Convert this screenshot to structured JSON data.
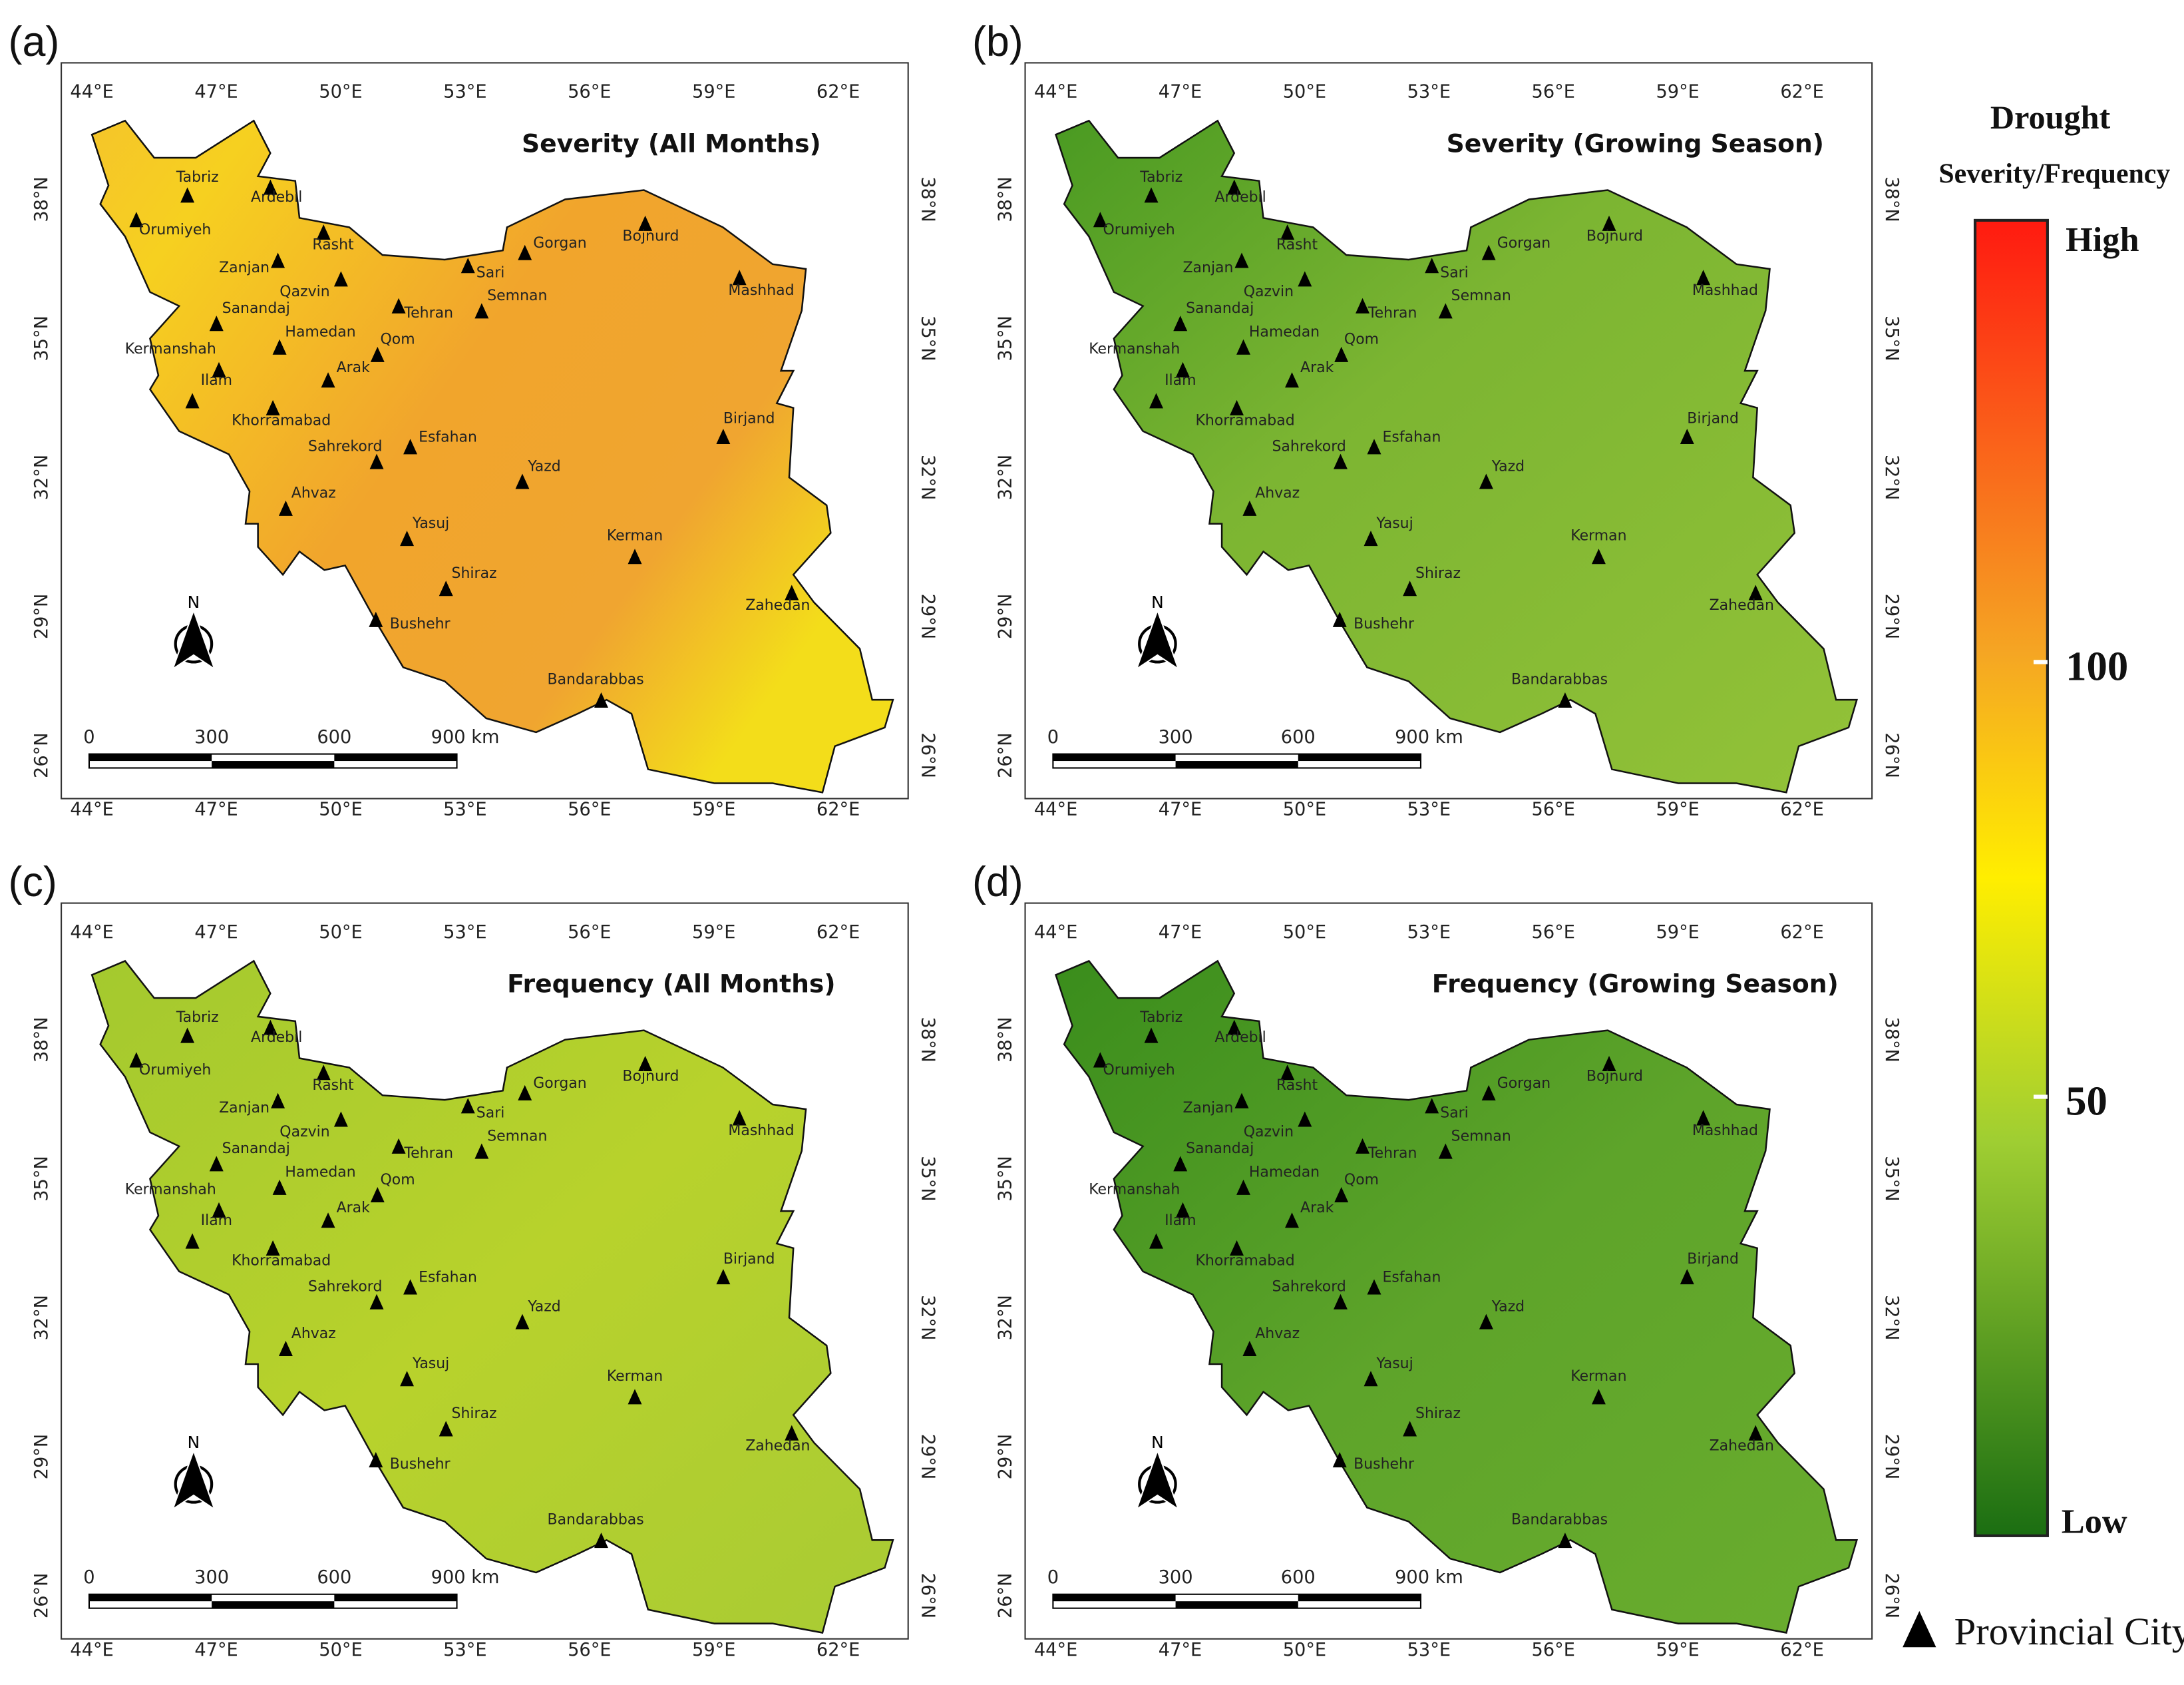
{
  "panels": [
    {
      "label": "(a)",
      "title": "Severity (All Months)"
    },
    {
      "label": "(b)",
      "title": "Severity (Growing Season)"
    },
    {
      "label": "(c)",
      "title": "Frequency (All Months)"
    },
    {
      "label": "(d)",
      "title": "Frequency (Growing Season)"
    }
  ],
  "lon_ticks": [
    "44°E",
    "47°E",
    "50°E",
    "53°E",
    "56°E",
    "59°E",
    "62°E"
  ],
  "lat_ticks": [
    "26°N",
    "29°N",
    "32°N",
    "35°N",
    "38°N"
  ],
  "north": "N",
  "scale_bar": [
    "0",
    "300",
    "600",
    "900 km"
  ],
  "cities": [
    "Tabriz",
    "Ardebil",
    "Orumiyeh",
    "Rasht",
    "Zanjan",
    "Qazvin",
    "Gorgan",
    "Sari",
    "Tehran",
    "Semnan",
    "Bojnurd",
    "Mashhad",
    "Sanandaj",
    "Hamedan",
    "Kermanshah",
    "Qom",
    "Arak",
    "Ilam",
    "Khorramabad",
    "Esfahan",
    "Sahrekord",
    "Birjand",
    "Yazd",
    "Ahvaz",
    "Yasuj",
    "Kerman",
    "Shiraz",
    "Zahedan",
    "Bushehr",
    "Bandarabbas"
  ],
  "legend": {
    "title": "Drought",
    "subtitle": "Severity/Frequency",
    "high": "High",
    "low": "Low",
    "ticks": [
      100,
      50
    ],
    "marker": "Provincial City"
  }
}
